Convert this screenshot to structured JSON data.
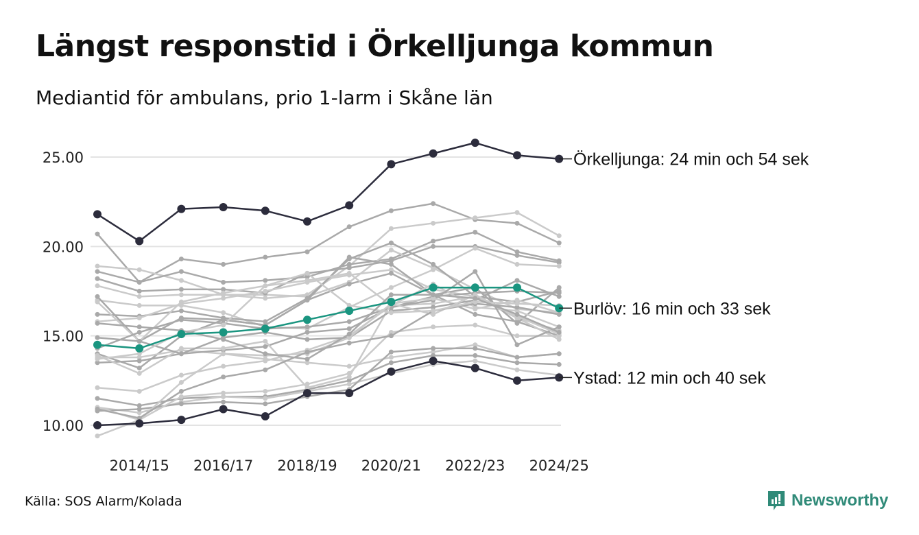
{
  "title": "Längst responstid i Örkelljunga kommun",
  "subtitle": "Mediantid för ambulans, prio 1-larm i Skåne län",
  "source": "Källa: SOS Alarm/Kolada",
  "brand": "Newsworthy",
  "colors": {
    "highlight_dark": "#2c2c3c",
    "highlight_teal": "#1a9580",
    "grey_a": "#a9a9a9",
    "grey_b": "#cacaca",
    "grid": "#e3e3e3",
    "brand": "#2f8a78"
  },
  "chart_data": {
    "type": "line",
    "title": "Längst responstid i Örkelljunga kommun",
    "xlabel": "",
    "ylabel": "",
    "x": [
      "2013/14",
      "2014/15",
      "2015/16",
      "2016/17",
      "2017/18",
      "2018/19",
      "2019/20",
      "2020/21",
      "2021/22",
      "2022/23",
      "2023/24",
      "2024/25"
    ],
    "x_tick_labels": [
      "2014/15",
      "2016/17",
      "2018/19",
      "2020/21",
      "2022/23",
      "2024/25"
    ],
    "y_ticks": [
      "10.00",
      "15.00",
      "20.00",
      "25.00"
    ],
    "ylim": [
      10,
      25
    ],
    "grid": true,
    "highlight_series": [
      {
        "name": "Örkelljunga",
        "label": "Örkelljunga: 24 min och 54 sek",
        "color": "dark",
        "values": [
          21.8,
          20.3,
          22.1,
          22.2,
          22.0,
          21.4,
          22.3,
          24.6,
          25.2,
          25.8,
          25.1,
          24.9
        ]
      },
      {
        "name": "Burlöv",
        "label": "Burlöv: 16 min och 33 sek",
        "color": "teal",
        "values": [
          14.5,
          14.3,
          15.1,
          15.2,
          15.4,
          15.9,
          16.4,
          16.9,
          17.7,
          17.7,
          17.7,
          16.55
        ]
      },
      {
        "name": "Ystad",
        "label": "Ystad: 12 min och 40 sek",
        "color": "dark",
        "values": [
          10.0,
          10.1,
          10.3,
          10.9,
          10.5,
          11.8,
          11.8,
          13.0,
          13.6,
          13.2,
          12.5,
          12.67
        ]
      }
    ],
    "other_series": [
      [
        20.7,
        18.0,
        19.3,
        19.0,
        19.4,
        19.7,
        21.1,
        22.0,
        22.4,
        21.5,
        21.3,
        20.2
      ],
      [
        18.9,
        18.7,
        18.1,
        17.3,
        17.1,
        17.3,
        18.9,
        21.0,
        21.3,
        21.6,
        21.9,
        20.6
      ],
      [
        18.6,
        18.0,
        18.6,
        18.0,
        18.1,
        18.3,
        19.0,
        19.3,
        20.3,
        20.8,
        19.7,
        19.2
      ],
      [
        17.8,
        17.2,
        17.3,
        17.3,
        17.3,
        17.2,
        18.0,
        19.8,
        18.8,
        17.6,
        16.5,
        16.3
      ],
      [
        18.2,
        17.5,
        17.6,
        17.6,
        17.4,
        18.5,
        18.8,
        19.2,
        20.0,
        20.0,
        19.5,
        19.1
      ],
      [
        17.0,
        16.7,
        16.7,
        16.3,
        15.5,
        15.4,
        16.6,
        17.7,
        18.7,
        19.9,
        19.0,
        18.9
      ],
      [
        16.2,
        16.1,
        16.4,
        16.0,
        15.8,
        17.1,
        19.3,
        20.2,
        19.0,
        17.2,
        16.9,
        17.5
      ],
      [
        15.8,
        16.0,
        16.8,
        17.1,
        17.5,
        18.0,
        18.4,
        18.7,
        17.6,
        17.2,
        16.0,
        15.3
      ],
      [
        14.0,
        13.2,
        15.0,
        15.9,
        15.6,
        17.0,
        17.9,
        18.5,
        17.3,
        16.2,
        15.8,
        15.0
      ],
      [
        13.8,
        13.8,
        14.2,
        14.0,
        13.7,
        13.5,
        13.3,
        13.8,
        14.1,
        14.5,
        13.8,
        14.0
      ],
      [
        13.5,
        13.6,
        14.0,
        14.2,
        14.4,
        15.2,
        15.4,
        16.6,
        17.2,
        17.4,
        17.5,
        17.4
      ],
      [
        12.1,
        11.9,
        12.8,
        13.3,
        13.6,
        14.2,
        15.0,
        16.7,
        16.8,
        17.2,
        16.0,
        14.8
      ],
      [
        11.5,
        11.1,
        11.5,
        11.6,
        11.6,
        12.0,
        12.5,
        13.5,
        13.9,
        13.9,
        13.5,
        13.4
      ],
      [
        11.0,
        10.7,
        11.3,
        11.6,
        11.5,
        11.9,
        12.3,
        12.9,
        13.4,
        13.6,
        13.1,
        12.8
      ],
      [
        10.8,
        10.9,
        11.2,
        11.3,
        11.2,
        11.6,
        12.0,
        14.1,
        14.3,
        14.3,
        13.8,
        14.0
      ],
      [
        9.4,
        10.3,
        11.6,
        11.8,
        11.9,
        12.3,
        12.9,
        15.2,
        15.5,
        15.6,
        15.0,
        15.0
      ],
      [
        17.2,
        14.7,
        16.0,
        15.9,
        15.6,
        17.0,
        19.4,
        19.0,
        17.3,
        17.7,
        15.7,
        17.7
      ],
      [
        16.9,
        14.7,
        16.9,
        17.4,
        17.8,
        18.1,
        18.5,
        16.7,
        17.9,
        16.6,
        16.4,
        15.5
      ],
      [
        14.3,
        15.2,
        15.9,
        15.7,
        15.4,
        15.5,
        15.8,
        16.6,
        17.0,
        18.6,
        14.5,
        15.5
      ],
      [
        13.9,
        12.9,
        14.3,
        14.3,
        14.7,
        12.1,
        12.7,
        16.8,
        17.1,
        16.5,
        17.0,
        16.3
      ],
      [
        14.9,
        14.7,
        14.0,
        14.9,
        15.2,
        14.8,
        14.9,
        16.4,
        16.6,
        17.0,
        18.1,
        17.2
      ],
      [
        11.0,
        10.3,
        12.4,
        14.0,
        13.9,
        14.0,
        14.9,
        16.8,
        16.2,
        17.3,
        16.1,
        15.1
      ],
      [
        10.9,
        10.4,
        11.9,
        12.7,
        13.1,
        14.1,
        14.6,
        15.0,
        16.4,
        16.8,
        16.6,
        16.2
      ],
      [
        13.7,
        14.0,
        15.2,
        15.6,
        17.8,
        18.5,
        16.7,
        16.3,
        16.4,
        16.9,
        16.8,
        16.7
      ],
      [
        15.7,
        15.5,
        15.3,
        14.8,
        14.0,
        13.7,
        15.1,
        17.3,
        17.3,
        17.1,
        16.2,
        15.2
      ]
    ]
  }
}
